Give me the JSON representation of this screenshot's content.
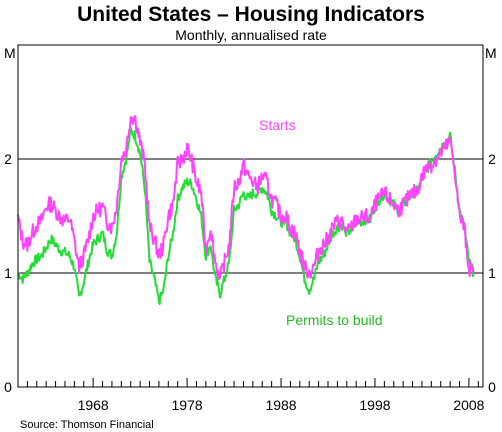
{
  "chart_data": {
    "type": "line",
    "title": "United States – Housing Indicators",
    "subtitle": "Monthly, annualised rate",
    "y_unit_left": "M",
    "y_unit_right": "M",
    "ylim": [
      0,
      3
    ],
    "yticks": [
      0,
      1,
      2
    ],
    "ytick_labels": [
      "0",
      "1",
      "2"
    ],
    "xlim": [
      1960,
      2009.5
    ],
    "xticks": [
      1968,
      1978,
      1988,
      1998,
      2008
    ],
    "xtick_labels": [
      "1968",
      "1978",
      "1988",
      "1998",
      "2008"
    ],
    "grid": "horizontal lines at 1 and 2",
    "colors": {
      "starts": "#ff44ff",
      "permits": "#22dd33"
    },
    "series": [
      {
        "name": "Starts",
        "key": "starts",
        "x": [
          1960.0,
          1960.5,
          1961.0,
          1961.5,
          1962.0,
          1962.5,
          1963.0,
          1963.5,
          1964.0,
          1964.5,
          1965.0,
          1965.5,
          1966.0,
          1966.5,
          1967.0,
          1967.5,
          1968.0,
          1968.5,
          1969.0,
          1969.5,
          1970.0,
          1970.5,
          1971.0,
          1971.5,
          1972.0,
          1972.5,
          1973.0,
          1973.5,
          1974.0,
          1974.5,
          1975.0,
          1975.5,
          1976.0,
          1976.5,
          1977.0,
          1977.5,
          1978.0,
          1978.5,
          1979.0,
          1979.5,
          1980.0,
          1980.5,
          1981.0,
          1981.5,
          1982.0,
          1982.5,
          1983.0,
          1983.5,
          1984.0,
          1984.5,
          1985.0,
          1985.5,
          1986.0,
          1986.5,
          1987.0,
          1987.5,
          1988.0,
          1988.5,
          1989.0,
          1989.5,
          1990.0,
          1990.5,
          1991.0,
          1991.5,
          1992.0,
          1992.5,
          1993.0,
          1993.5,
          1994.0,
          1994.5,
          1995.0,
          1995.5,
          1996.0,
          1996.5,
          1997.0,
          1997.5,
          1998.0,
          1998.5,
          1999.0,
          1999.5,
          2000.0,
          2000.5,
          2001.0,
          2001.5,
          2002.0,
          2002.5,
          2003.0,
          2003.5,
          2004.0,
          2004.5,
          2005.0,
          2005.5,
          2006.0,
          2006.5,
          2007.0,
          2007.5,
          2008.0,
          2008.5
        ],
        "values": [
          1.48,
          1.28,
          1.25,
          1.35,
          1.42,
          1.46,
          1.58,
          1.61,
          1.55,
          1.49,
          1.45,
          1.48,
          1.28,
          1.05,
          1.15,
          1.3,
          1.5,
          1.55,
          1.58,
          1.45,
          1.4,
          1.58,
          2.0,
          2.08,
          2.38,
          2.35,
          2.15,
          1.95,
          1.4,
          1.3,
          1.15,
          1.25,
          1.5,
          1.6,
          1.95,
          2.0,
          2.1,
          1.98,
          1.8,
          1.7,
          1.2,
          1.4,
          1.1,
          0.95,
          1.1,
          1.25,
          1.75,
          1.8,
          1.95,
          1.85,
          1.8,
          1.75,
          1.85,
          1.8,
          1.65,
          1.6,
          1.5,
          1.5,
          1.4,
          1.35,
          1.2,
          1.05,
          1.0,
          1.05,
          1.2,
          1.25,
          1.3,
          1.4,
          1.45,
          1.45,
          1.35,
          1.4,
          1.47,
          1.48,
          1.5,
          1.47,
          1.6,
          1.65,
          1.7,
          1.65,
          1.6,
          1.55,
          1.6,
          1.65,
          1.7,
          1.72,
          1.85,
          1.92,
          1.95,
          2.0,
          2.05,
          2.1,
          2.15,
          1.9,
          1.5,
          1.4,
          1.05,
          1.0
        ]
      },
      {
        "name": "Permits to build",
        "key": "permits",
        "x": [
          1960.0,
          1960.5,
          1961.0,
          1961.5,
          1962.0,
          1962.5,
          1963.0,
          1963.5,
          1964.0,
          1964.5,
          1965.0,
          1965.5,
          1966.0,
          1966.5,
          1967.0,
          1967.5,
          1968.0,
          1968.5,
          1969.0,
          1969.5,
          1970.0,
          1970.5,
          1971.0,
          1971.5,
          1972.0,
          1972.5,
          1973.0,
          1973.5,
          1974.0,
          1974.5,
          1975.0,
          1975.5,
          1976.0,
          1976.5,
          1977.0,
          1977.5,
          1978.0,
          1978.5,
          1979.0,
          1979.5,
          1980.0,
          1980.5,
          1981.0,
          1981.5,
          1982.0,
          1982.5,
          1983.0,
          1983.5,
          1984.0,
          1984.5,
          1985.0,
          1985.5,
          1986.0,
          1986.5,
          1987.0,
          1987.5,
          1988.0,
          1988.5,
          1989.0,
          1989.5,
          1990.0,
          1990.5,
          1991.0,
          1991.5,
          1992.0,
          1992.5,
          1993.0,
          1993.5,
          1994.0,
          1994.5,
          1995.0,
          1995.5,
          1996.0,
          1996.5,
          1997.0,
          1997.5,
          1998.0,
          1998.5,
          1999.0,
          1999.5,
          2000.0,
          2000.5,
          2001.0,
          2001.5,
          2002.0,
          2002.5,
          2003.0,
          2003.5,
          2004.0,
          2004.5,
          2005.0,
          2005.5,
          2006.0,
          2006.5,
          2007.0,
          2007.5,
          2008.0,
          2008.5
        ],
        "values": [
          1.0,
          0.95,
          1.0,
          1.08,
          1.12,
          1.15,
          1.22,
          1.3,
          1.25,
          1.2,
          1.18,
          1.15,
          1.05,
          0.78,
          0.92,
          1.1,
          1.25,
          1.3,
          1.35,
          1.2,
          1.15,
          1.35,
          1.85,
          2.0,
          2.25,
          2.2,
          2.05,
          1.75,
          1.1,
          0.95,
          0.75,
          0.85,
          1.15,
          1.35,
          1.65,
          1.75,
          1.8,
          1.78,
          1.65,
          1.5,
          1.15,
          1.25,
          0.95,
          0.82,
          0.95,
          1.1,
          1.55,
          1.6,
          1.7,
          1.65,
          1.7,
          1.7,
          1.75,
          1.7,
          1.55,
          1.5,
          1.45,
          1.45,
          1.35,
          1.3,
          1.15,
          0.95,
          0.85,
          0.95,
          1.1,
          1.15,
          1.25,
          1.35,
          1.4,
          1.42,
          1.35,
          1.38,
          1.45,
          1.45,
          1.47,
          1.47,
          1.58,
          1.65,
          1.7,
          1.65,
          1.6,
          1.55,
          1.6,
          1.65,
          1.7,
          1.72,
          1.82,
          1.9,
          1.98,
          2.05,
          2.1,
          2.15,
          2.2,
          1.9,
          1.55,
          1.4,
          1.1,
          1.0
        ]
      }
    ],
    "source": "Source: Thomson Financial"
  }
}
